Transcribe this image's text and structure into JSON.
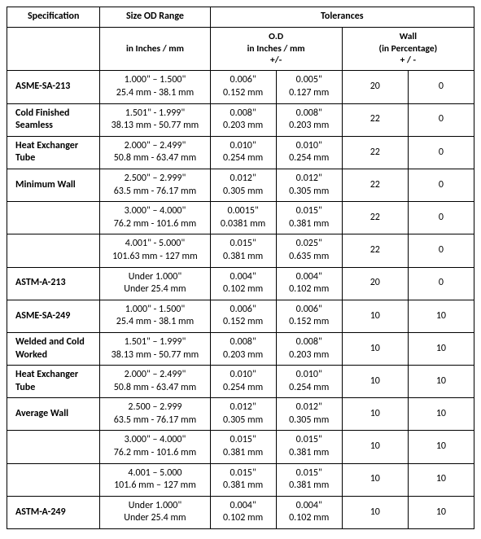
{
  "headers": {
    "spec": "Specification",
    "size": "Size OD Range",
    "tol": "Tolerances",
    "size_sub": "in Inches / mm",
    "od_sub1": "O.D",
    "od_sub2": "in Inches / mm",
    "od_sub3": "+/-",
    "wall_sub1": "Wall",
    "wall_sub2": "(in Percentage)",
    "wall_sub3": "+ / -"
  },
  "rows": [
    {
      "spec": "ASME-SA-213",
      "size_in": "1.000\" – 1.500\"",
      "size_mm": "25.4 mm - 38.1 mm",
      "od1_in": "0.006\"",
      "od1_mm": "0.152 mm",
      "od2_in": "0.005\"",
      "od2_mm": "0.127 mm",
      "w1": "20",
      "w2": "0"
    },
    {
      "spec": "Cold Finished Seamless",
      "size_in": "1.501\" - 1.999\"",
      "size_mm": "38.13 mm - 50.77 mm",
      "od1_in": "0.008\"",
      "od1_mm": "0.203 mm",
      "od2_in": "0.008\"",
      "od2_mm": "0.203 mm",
      "w1": "22",
      "w2": "0"
    },
    {
      "spec": "Heat Exchanger Tube",
      "size_in": "2.000\" – 2.499\"",
      "size_mm": "50.8 mm - 63.47 mm",
      "od1_in": "0.010\"",
      "od1_mm": "0.254 mm",
      "od2_in": "0.010\"",
      "od2_mm": "0.254 mm",
      "w1": "22",
      "w2": "0"
    },
    {
      "spec": "Minimum Wall",
      "size_in": "2.500\" – 2.999\"",
      "size_mm": "63.5 mm - 76.17 mm",
      "od1_in": "0.012\"",
      "od1_mm": "0.305 mm",
      "od2_in": "0.012\"",
      "od2_mm": "0.305 mm",
      "w1": "22",
      "w2": "0"
    },
    {
      "spec": "",
      "size_in": "3.000\" – 4.000\"",
      "size_mm": "76.2 mm - 101.6 mm",
      "od1_in": "0.0015\"",
      "od1_mm": "0.0381 mm",
      "od2_in": "0.015\"",
      "od2_mm": "0.381 mm",
      "w1": "22",
      "w2": "0"
    },
    {
      "spec": "",
      "size_in": "4.001\" - 5.000\"",
      "size_mm": "101.63 mm - 127 mm",
      "od1_in": "0.015\"",
      "od1_mm": "0.381 mm",
      "od2_in": "0.025\"",
      "od2_mm": "0.635 mm",
      "w1": "22",
      "w2": "0"
    },
    {
      "spec": "ASTM-A-213",
      "size_in": "Under 1.000\"",
      "size_mm": "Under 25.4 mm",
      "od1_in": "0.004\"",
      "od1_mm": "0.102 mm",
      "od2_in": "0.004\"",
      "od2_mm": "0.102 mm",
      "w1": "20",
      "w2": "0"
    },
    {
      "spec": "ASME-SA-249",
      "size_in": "1.000\" - 1.500\"",
      "size_mm": "25.4 mm - 38.1 mm",
      "od1_in": "0.006\"",
      "od1_mm": "0.152 mm",
      "od2_in": "0.006\"",
      "od2_mm": "0.152 mm",
      "w1": "10",
      "w2": "10"
    },
    {
      "spec": "Welded and Cold Worked",
      "size_in": "1.501\" – 1.999\"",
      "size_mm": "38.13 mm - 50.77 mm",
      "od1_in": "0.008\"",
      "od1_mm": "0.203 mm",
      "od2_in": "0.008\"",
      "od2_mm": "0.203 mm",
      "w1": "10",
      "w2": "10"
    },
    {
      "spec": "Heat Exchanger Tube",
      "size_in": "2.000\" – 2.499\"",
      "size_mm": "50.8 mm - 63.47 mm",
      "od1_in": "0.010\"",
      "od1_mm": "0.254 mm",
      "od2_in": "0.010\"",
      "od2_mm": "0.254 mm",
      "w1": "10",
      "w2": "10"
    },
    {
      "spec": "Average Wall",
      "size_in": "2.500 – 2.999",
      "size_mm": "63.5 mm - 76.17 mm",
      "od1_in": "0.012\"",
      "od1_mm": "0.305 mm",
      "od2_in": "0.012\"",
      "od2_mm": "0.305 mm",
      "w1": "10",
      "w2": "10"
    },
    {
      "spec": "",
      "size_in": "3.000\" – 4.000\"",
      "size_mm": "76.2 mm - 101.6 mm",
      "od1_in": "0.015\"",
      "od1_mm": "0.381 mm",
      "od2_in": "0.015\"",
      "od2_mm": "0.381 mm",
      "w1": "10",
      "w2": "10"
    },
    {
      "spec": "",
      "size_in": "4.001 – 5.000",
      "size_mm": "101.6 mm – 127 mm",
      "od1_in": "0.015\"",
      "od1_mm": "0.381 mm",
      "od2_in": "0.015\"",
      "od2_mm": "0.381 mm",
      "w1": "10",
      "w2": "10"
    },
    {
      "spec": "ASTM-A-249",
      "size_in": "Under 1.000\"",
      "size_mm": "Under 25.4 mm",
      "od1_in": "0.004\"",
      "od1_mm": "0.102 mm",
      "od2_in": "0.004\"",
      "od2_mm": "0.102 mm",
      "w1": "10",
      "w2": "10"
    }
  ]
}
